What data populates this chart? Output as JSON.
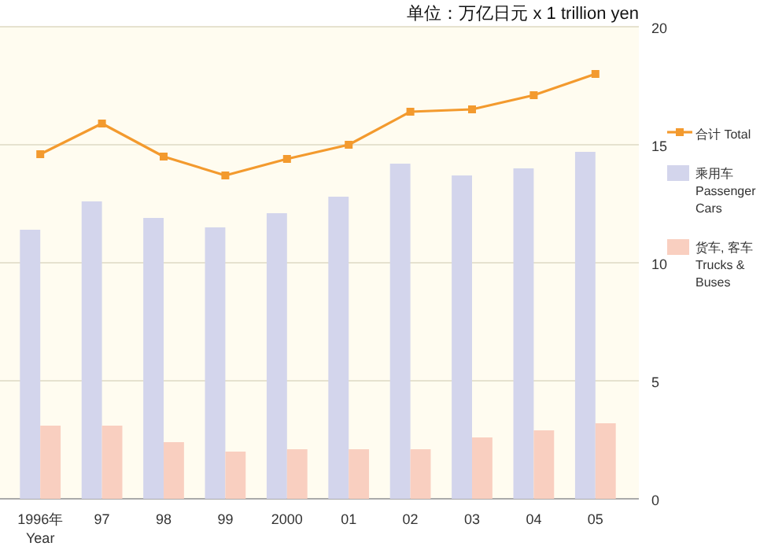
{
  "chart_data": {
    "type": "bar",
    "title": "单位：万亿日元 x 1 trillion yen",
    "xlabel": "Year",
    "categories": [
      "1996年",
      "97",
      "98",
      "99",
      "2000",
      "01",
      "02",
      "03",
      "04",
      "05"
    ],
    "series": [
      {
        "name": "合计 Total",
        "type": "line",
        "color": "#f39a2e",
        "marker": "square",
        "values": [
          14.6,
          15.9,
          14.5,
          13.7,
          14.4,
          15.0,
          16.4,
          16.5,
          17.1,
          18.0
        ]
      },
      {
        "name": "乘用车 Passenger Cars",
        "color": "#d3d5ec",
        "values": [
          11.4,
          12.6,
          11.9,
          11.5,
          12.1,
          12.8,
          14.2,
          13.7,
          14.0,
          14.7
        ]
      },
      {
        "name": "货车, 客车 Trucks & Buses",
        "color": "#f9cfc0",
        "values": [
          3.1,
          3.1,
          2.4,
          2.0,
          2.1,
          2.1,
          2.1,
          2.6,
          2.9,
          3.2
        ]
      }
    ],
    "ylim": [
      0,
      20
    ],
    "yticks": [
      0,
      5,
      10,
      15,
      20
    ],
    "grid": "y",
    "legend": "right"
  }
}
